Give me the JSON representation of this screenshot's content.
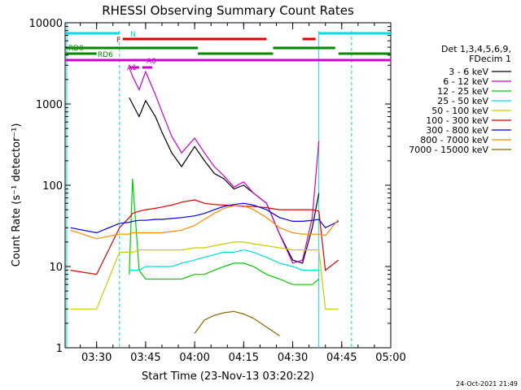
{
  "title": "RHESSI Observing Summary Count Rates",
  "footer_timestamp": "24-Oct-2021 21:49",
  "chart_data": {
    "type": "line",
    "title": "RHESSI Observing Summary Count Rates",
    "xlabel": "Start Time (23-Nov-13 03:20:22)",
    "ylabel": "Count Rate (s⁻¹ detector⁻¹)",
    "y_scale": "log",
    "ylim": [
      1,
      10000
    ],
    "xlim": [
      "03:20:22",
      "05:00"
    ],
    "x_ticks": [
      "03:30",
      "03:45",
      "04:00",
      "04:15",
      "04:30",
      "04:45",
      "05:00"
    ],
    "y_ticks": [
      "1",
      "10",
      "100",
      "1000",
      "10000"
    ],
    "grid": false,
    "legend_position": "right",
    "legend_header": [
      "Det 1,3,4,5,6,9,",
      "FDecim 1"
    ],
    "series": [
      {
        "name": "3 - 6 keV",
        "color": "#000000",
        "x": [
          "03:22",
          "03:30",
          "03:37",
          "03:40",
          "03:41",
          "03:43",
          "03:45",
          "03:48",
          "03:50",
          "03:53",
          "03:56",
          "04:00",
          "04:03",
          "04:06",
          "04:09",
          "04:12",
          "04:15",
          "04:18",
          "04:22",
          "04:26",
          "04:30",
          "04:33",
          "04:36",
          "04:38",
          "04:40",
          "04:44"
        ],
        "values": [
          null,
          null,
          null,
          1200,
          1000,
          700,
          1100,
          700,
          450,
          250,
          170,
          300,
          200,
          140,
          120,
          90,
          100,
          80,
          60,
          25,
          12,
          11,
          30,
          80,
          null,
          null
        ]
      },
      {
        "name": "6 - 12 keV",
        "color": "#cc00cc",
        "x": [
          "03:22",
          "03:30",
          "03:37",
          "03:40",
          "03:41",
          "03:43",
          "03:45",
          "03:48",
          "03:50",
          "03:53",
          "03:56",
          "04:00",
          "04:03",
          "04:06",
          "04:09",
          "04:12",
          "04:15",
          "04:18",
          "04:22",
          "04:26",
          "04:30",
          "04:33",
          "04:36",
          "04:38",
          "04:40",
          "04:44"
        ],
        "values": [
          null,
          null,
          null,
          2800,
          2200,
          1500,
          2500,
          1300,
          800,
          400,
          250,
          380,
          250,
          170,
          130,
          95,
          110,
          80,
          60,
          25,
          11,
          12,
          40,
          350,
          null,
          null
        ]
      },
      {
        "name": "12 - 25 keV",
        "color": "#00cc00",
        "x": [
          "03:22",
          "03:30",
          "03:37",
          "03:40",
          "03:41",
          "03:43",
          "03:45",
          "03:48",
          "03:50",
          "03:53",
          "03:56",
          "04:00",
          "04:03",
          "04:06",
          "04:09",
          "04:12",
          "04:15",
          "04:18",
          "04:22",
          "04:26",
          "04:30",
          "04:33",
          "04:36",
          "04:38",
          "04:40",
          "04:44"
        ],
        "values": [
          null,
          null,
          null,
          8,
          120,
          9,
          7,
          7,
          7,
          7,
          7,
          8,
          8,
          9,
          10,
          11,
          11,
          10,
          8,
          7,
          6,
          6,
          6,
          7,
          null,
          null
        ]
      },
      {
        "name": "25 - 50 keV",
        "color": "#00dddd",
        "x": [
          "03:22",
          "03:30",
          "03:37",
          "03:40",
          "03:41",
          "03:43",
          "03:45",
          "03:48",
          "03:50",
          "03:53",
          "03:56",
          "04:00",
          "04:03",
          "04:06",
          "04:09",
          "04:12",
          "04:15",
          "04:18",
          "04:22",
          "04:26",
          "04:30",
          "04:33",
          "04:36",
          "04:38",
          "04:40",
          "04:44"
        ],
        "values": [
          null,
          null,
          null,
          9,
          9,
          9,
          10,
          10,
          10,
          10,
          11,
          12,
          13,
          14,
          15,
          15,
          16,
          15,
          13,
          11,
          10,
          9,
          9,
          9,
          null,
          null
        ]
      },
      {
        "name": "50 - 100 keV",
        "color": "#cccc00",
        "x": [
          "03:22",
          "03:30",
          "03:37",
          "03:40",
          "03:41",
          "03:43",
          "03:45",
          "03:48",
          "03:50",
          "03:53",
          "03:56",
          "04:00",
          "04:03",
          "04:06",
          "04:09",
          "04:12",
          "04:15",
          "04:18",
          "04:22",
          "04:26",
          "04:30",
          "04:33",
          "04:36",
          "04:38",
          "04:40",
          "04:44"
        ],
        "values": [
          3,
          3,
          15,
          15,
          15,
          16,
          16,
          16,
          16,
          16,
          16,
          17,
          17,
          18,
          19,
          20,
          20,
          19,
          18,
          17,
          16,
          16,
          16,
          16,
          3,
          3
        ]
      },
      {
        "name": "100 - 300 keV",
        "color": "#dd0000",
        "x": [
          "03:22",
          "03:30",
          "03:37",
          "03:40",
          "03:41",
          "03:43",
          "03:45",
          "03:48",
          "03:50",
          "03:53",
          "03:56",
          "04:00",
          "04:03",
          "04:06",
          "04:09",
          "04:12",
          "04:15",
          "04:18",
          "04:22",
          "04:26",
          "04:30",
          "04:33",
          "04:36",
          "04:38",
          "04:40",
          "04:44"
        ],
        "values": [
          9,
          8,
          30,
          40,
          45,
          48,
          50,
          52,
          54,
          57,
          62,
          66,
          60,
          58,
          57,
          56,
          55,
          55,
          53,
          50,
          50,
          50,
          50,
          48,
          9,
          12
        ]
      },
      {
        "name": "300 - 800 keV",
        "color": "#0000dd",
        "x": [
          "03:22",
          "03:30",
          "03:37",
          "03:40",
          "03:41",
          "03:43",
          "03:45",
          "03:48",
          "03:50",
          "03:53",
          "03:56",
          "04:00",
          "04:03",
          "04:06",
          "04:09",
          "04:12",
          "04:15",
          "04:18",
          "04:22",
          "04:26",
          "04:30",
          "04:33",
          "04:36",
          "04:38",
          "04:40",
          "04:44"
        ],
        "values": [
          30,
          26,
          34,
          35,
          36,
          37,
          37,
          38,
          38,
          39,
          40,
          42,
          45,
          50,
          55,
          58,
          60,
          57,
          50,
          40,
          36,
          36,
          37,
          38,
          30,
          36
        ]
      },
      {
        "name": "800 - 7000 keV",
        "color": "#ff8800",
        "x": [
          "03:22",
          "03:30",
          "03:37",
          "03:40",
          "03:41",
          "03:43",
          "03:45",
          "03:48",
          "03:50",
          "03:53",
          "03:56",
          "04:00",
          "04:03",
          "04:06",
          "04:09",
          "04:12",
          "04:15",
          "04:18",
          "04:22",
          "04:26",
          "04:30",
          "04:33",
          "04:36",
          "04:38",
          "04:40",
          "04:44"
        ],
        "values": [
          28,
          22,
          25,
          25,
          26,
          26,
          26,
          26,
          26,
          27,
          28,
          32,
          38,
          45,
          52,
          56,
          56,
          50,
          40,
          30,
          26,
          25,
          25,
          25,
          24,
          38
        ]
      },
      {
        "name": "7000 - 15000 keV",
        "color": "#886600",
        "x": [
          "03:22",
          "03:30",
          "03:37",
          "03:40",
          "03:41",
          "03:43",
          "03:45",
          "03:48",
          "03:50",
          "03:53",
          "03:56",
          "04:00",
          "04:03",
          "04:06",
          "04:09",
          "04:12",
          "04:15",
          "04:18",
          "04:22",
          "04:26",
          "04:30",
          "04:33",
          "04:36",
          "04:38",
          "04:40",
          "04:44"
        ],
        "values": [
          null,
          null,
          null,
          null,
          null,
          null,
          null,
          null,
          null,
          null,
          null,
          1.5,
          2.2,
          2.5,
          2.7,
          2.8,
          2.6,
          2.3,
          1.8,
          1.4,
          null,
          null,
          null,
          null,
          null,
          null
        ]
      }
    ],
    "annotations": [
      {
        "text": "N",
        "color": "#00cccc"
      },
      {
        "text": "F",
        "color": "#dd0000"
      },
      {
        "text": "RD0",
        "color": "#008800"
      },
      {
        "text": "RD6",
        "color": "#008800"
      },
      {
        "text": "A0",
        "color": "#cc00cc"
      },
      {
        "text": "A1",
        "color": "#cc00cc"
      }
    ]
  }
}
